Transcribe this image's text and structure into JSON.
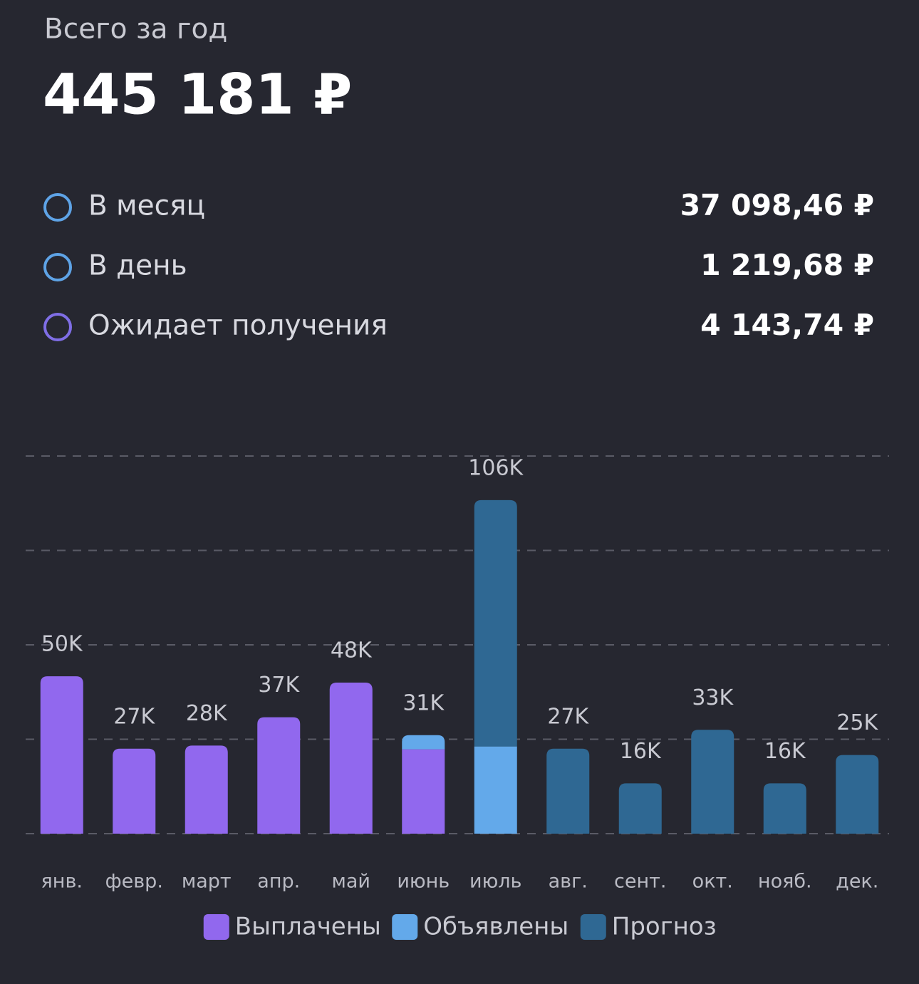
{
  "header": {
    "title": "Всего за год",
    "total": "445 181 ₽"
  },
  "rows": [
    {
      "label": "В месяц",
      "value": "37 098,46 ₽",
      "color": "#5ea3e6"
    },
    {
      "label": "В день",
      "value": "1 219,68 ₽",
      "color": "#5ea3e6"
    },
    {
      "label": "Ожидает получения",
      "value": "4 143,74 ₽",
      "color": "#7f6ee6"
    }
  ],
  "chart_data": {
    "type": "bar",
    "stacked": true,
    "categories": [
      "янв.",
      "февр.",
      "март",
      "апр.",
      "май",
      "июнь",
      "июль",
      "авг.",
      "сент.",
      "окт.",
      "нояб.",
      "дек."
    ],
    "series": [
      {
        "name": "Выплачены",
        "color": "#9168ee",
        "values": [
          50000,
          27000,
          28000,
          37000,
          48000,
          26800,
          null,
          null,
          null,
          null,
          null,
          null
        ]
      },
      {
        "name": "Объявлены",
        "color": "#63a9ea",
        "values": [
          null,
          null,
          null,
          null,
          null,
          4500,
          27700,
          null,
          null,
          null,
          null,
          null
        ]
      },
      {
        "name": "Прогноз",
        "color": "#2f6893",
        "values": [
          null,
          null,
          null,
          null,
          null,
          null,
          78300,
          27000,
          16000,
          33000,
          16000,
          25000
        ]
      }
    ],
    "value_labels": [
      "50K",
      "27K",
      "28K",
      "37K",
      "48K",
      "31K",
      "106K",
      "27K",
      "16K",
      "33K",
      "16K",
      "25K"
    ],
    "ylim": [
      0,
      120000
    ],
    "yticks": [
      0,
      30000,
      60000,
      90000,
      120000
    ],
    "grid": true
  }
}
